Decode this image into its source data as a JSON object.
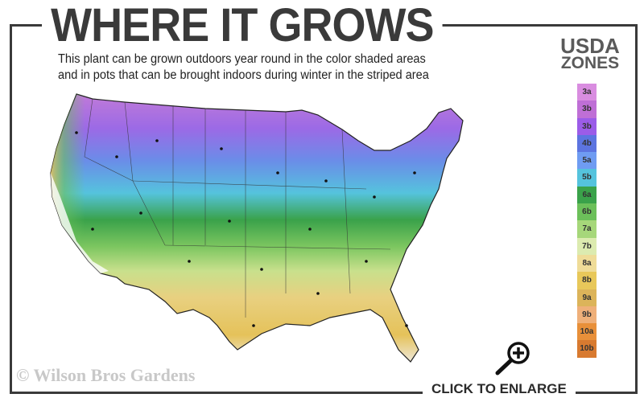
{
  "header": {
    "title": "WHERE IT GROWS",
    "subtitle_line1": "This plant can be grown outdoors year round in the color shaded areas",
    "subtitle_line2": "and in pots that can be brought indoors during winter in the striped area"
  },
  "legend": {
    "title_line1": "USDA",
    "title_line2": "ZONES",
    "zones": [
      {
        "label": "3a",
        "color": "#d98de0"
      },
      {
        "label": "3b",
        "color": "#bf6fd6"
      },
      {
        "label": "3b",
        "color": "#9b5ce8"
      },
      {
        "label": "4b",
        "color": "#5c74e0"
      },
      {
        "label": "5a",
        "color": "#6f9cf2"
      },
      {
        "label": "5b",
        "color": "#55c3dd"
      },
      {
        "label": "6a",
        "color": "#3aa24a"
      },
      {
        "label": "6b",
        "color": "#6cc05a"
      },
      {
        "label": "7a",
        "color": "#a6d77a"
      },
      {
        "label": "7b",
        "color": "#dcebb0"
      },
      {
        "label": "8a",
        "color": "#efdc98"
      },
      {
        "label": "8b",
        "color": "#e8c85a"
      },
      {
        "label": "9a",
        "color": "#dcb45a"
      },
      {
        "label": "9b",
        "color": "#efb07a"
      },
      {
        "label": "10a",
        "color": "#e8903a"
      },
      {
        "label": "10b",
        "color": "#d87a30"
      }
    ]
  },
  "footer": {
    "watermark": "© Wilson Bros Gardens",
    "enlarge_label": "CLICK TO ENLARGE"
  }
}
